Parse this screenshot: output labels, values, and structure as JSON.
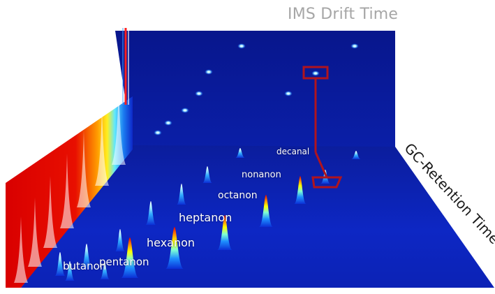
{
  "chart_data": {
    "type": "3d-surface",
    "axes": {
      "back": "IMS Drift Time",
      "depth": "GC-Retention Time"
    },
    "compounds": [
      {
        "name": "butanon",
        "rank": 0
      },
      {
        "name": "pentanon",
        "rank": 1
      },
      {
        "name": "hexanon",
        "rank": 2
      },
      {
        "name": "heptanon",
        "rank": 3
      },
      {
        "name": "octanon",
        "rank": 4
      },
      {
        "name": "nonanon",
        "rank": 5
      },
      {
        "name": "decanal",
        "rank": 6
      }
    ],
    "highlight": {
      "compound": "decanal",
      "color": "#b0141e"
    },
    "colormap": [
      "#000a8a",
      "#0b2fd6",
      "#1e90ff",
      "#7fffd4",
      "#ffff00",
      "#ff8c00",
      "#e60000"
    ]
  }
}
